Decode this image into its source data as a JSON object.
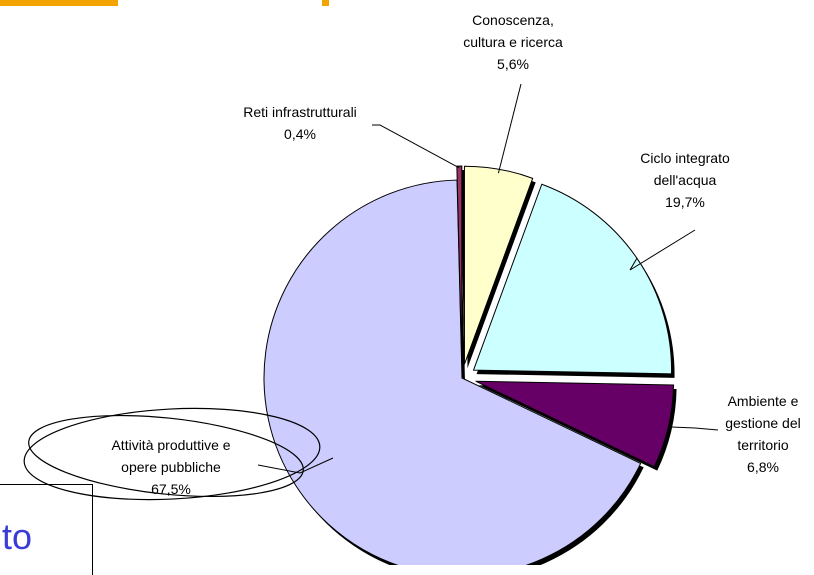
{
  "colors": {
    "accent_bar": "#f4a400",
    "corner_text": "#3b3bd8"
  },
  "corner_text": "to",
  "chart_data": {
    "type": "pie",
    "title": "",
    "slices": [
      {
        "label": [
          "Conoscenza,",
          "cultura e ricerca",
          "5,6%"
        ],
        "value": 5.6,
        "color": "#ffffcc",
        "exploded": true
      },
      {
        "label": [
          "Ciclo integrato",
          "dell'acqua",
          "19,7%"
        ],
        "value": 19.7,
        "color": "#ccffff",
        "exploded": true
      },
      {
        "label": [
          "Ambiente e",
          "gestione del",
          "territorio",
          "6,8%"
        ],
        "value": 6.8,
        "color": "#660066",
        "exploded": true
      },
      {
        "label": [
          "Attività produttive e",
          "opere pubbliche",
          "67,5%"
        ],
        "value": 67.5,
        "color": "#ccccff",
        "exploded": false,
        "highlighted": true
      },
      {
        "label": [
          "Reti infrastrutturali",
          "0,4%"
        ],
        "value": 0.4,
        "color": "#993366",
        "exploded": true
      }
    ]
  }
}
